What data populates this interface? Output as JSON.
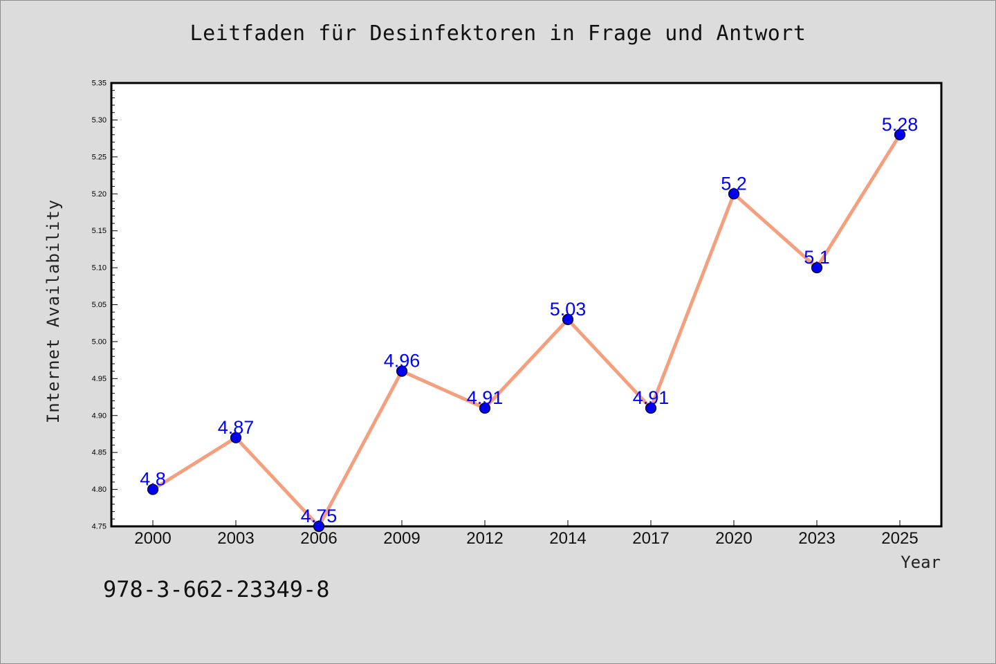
{
  "chart_data": {
    "type": "line",
    "title": "Leitfaden für Desinfektoren in Frage und Antwort",
    "xlabel": "Year",
    "ylabel": "Internet Availability",
    "categories": [
      "2000",
      "2003",
      "2006",
      "2009",
      "2012",
      "2014",
      "2017",
      "2020",
      "2023",
      "2025"
    ],
    "series": [
      {
        "values": [
          4.8,
          4.87,
          4.75,
          4.96,
          4.91,
          5.03,
          4.91,
          5.2,
          5.1,
          5.28
        ],
        "data_labels": [
          "4.8",
          "4.87",
          "4.75",
          "4.96",
          "4.91",
          "5.03",
          "4.91",
          "5.2",
          "5.1",
          "5.28"
        ]
      }
    ],
    "ylim": [
      4.75,
      5.35
    ],
    "yticks": [
      "4.75",
      "4.80",
      "4.85",
      "4.90",
      "4.95",
      "5.00",
      "5.05",
      "5.10",
      "5.15",
      "5.20",
      "5.25",
      "5.30",
      "5.35"
    ],
    "grid": false,
    "line_color": "#f4a07e",
    "marker_color": "#0000ee",
    "label_color": "#0000ff",
    "background_color": "#dcdcdc",
    "plot_background_color": "#ffffff"
  },
  "footer": {
    "isbn": "978-3-662-23349-8"
  }
}
